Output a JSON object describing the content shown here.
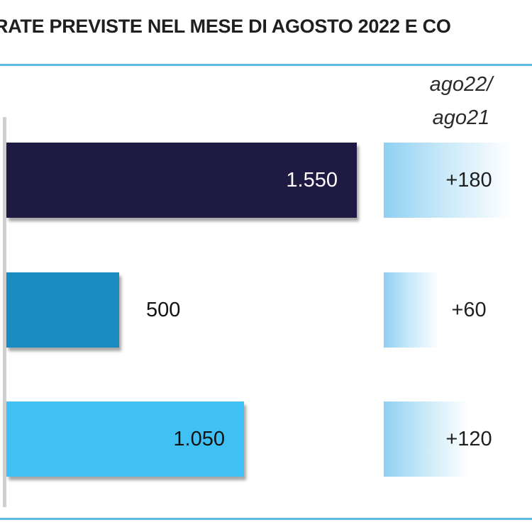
{
  "title": "RATE PREVISTE NEL MESE DI  AGOSTO 2022 E CO",
  "column_header": [
    "ago22/",
    "ago21"
  ],
  "colors": {
    "rule": "#5fb8df",
    "bar1": "#1e1a44",
    "bar2": "#1a8bbf",
    "bar3": "#40c1f5"
  },
  "chart_data": {
    "type": "bar",
    "orientation": "horizontal",
    "xlim": [
      0,
      1550
    ],
    "bars": [
      {
        "value": 1550,
        "label": "1.550",
        "color": "#1e1a44",
        "label_color": "#ffffff",
        "label_position": "inside"
      },
      {
        "value": 500,
        "label": "500",
        "color": "#1a8bbf",
        "label_color": "#111111",
        "label_position": "outside"
      },
      {
        "value": 1050,
        "label": "1.050",
        "color": "#40c1f5",
        "label_color": "#111111",
        "label_position": "inside"
      }
    ],
    "variation": [
      {
        "value": 180,
        "label": "+180"
      },
      {
        "value": 60,
        "label": "+60"
      },
      {
        "value": 120,
        "label": "+120"
      }
    ]
  }
}
